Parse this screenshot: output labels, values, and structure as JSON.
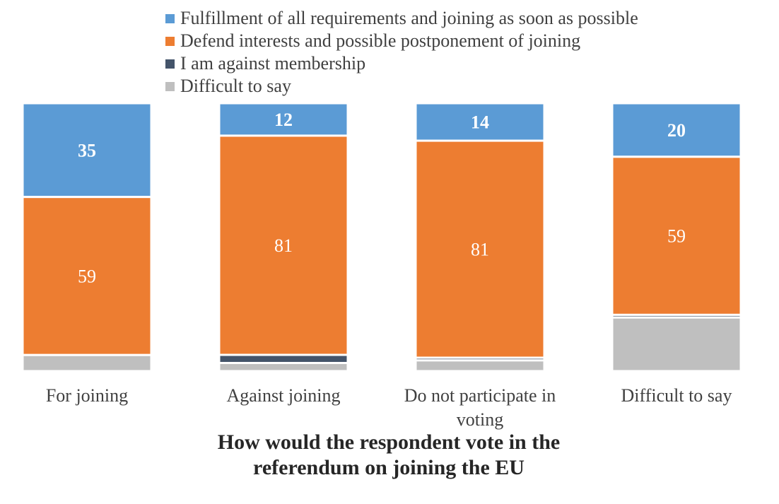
{
  "chart_data": {
    "type": "bar",
    "stacked": true,
    "normalized": true,
    "xlabel": "How would the respondent vote in the referendum on joining the EU",
    "ylabel": "",
    "ylim": [
      0,
      100
    ],
    "categories": [
      "For joining",
      "Against joining",
      "Do not participate in voting",
      "Difficult to say"
    ],
    "series": [
      {
        "name": "Fulfillment of all requirements and joining as soon as possible",
        "color": "#5B9BD5",
        "values": [
          35,
          12,
          14,
          20
        ],
        "labels": [
          "35",
          "12",
          "14",
          "20"
        ],
        "label_style": "bold"
      },
      {
        "name": "Defend interests and possible postponement of joining",
        "color": "#ED7D31",
        "values": [
          59,
          81,
          81,
          59
        ],
        "labels": [
          "59",
          "81",
          "81",
          "59"
        ],
        "label_style": "normal"
      },
      {
        "name": "I am against membership",
        "color": "#44546A",
        "values": [
          0,
          3,
          1,
          1
        ],
        "labels": null
      },
      {
        "name": "Difficult to say",
        "color": "#BFBFBF",
        "values": [
          6,
          3,
          4,
          20
        ],
        "labels": null
      }
    ],
    "legend_position": "top"
  }
}
